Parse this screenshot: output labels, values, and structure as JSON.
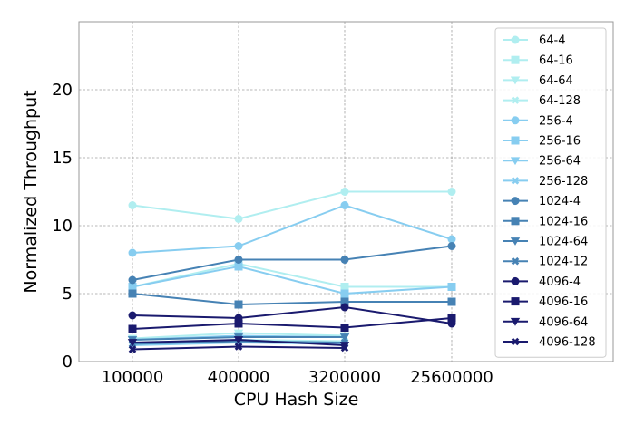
{
  "chart_data": {
    "type": "line",
    "xlabel": "CPU Hash Size",
    "ylabel": "Normalized Throughput",
    "categories": [
      "100000",
      "400000",
      "3200000",
      "25600000"
    ],
    "ylim": [
      0,
      25
    ],
    "yticks": [
      0,
      5,
      10,
      15,
      20
    ],
    "grid": true,
    "legend_position": "right",
    "series": [
      {
        "name": "64-4",
        "color": "#b0eef0",
        "marker": "circle",
        "values": [
          11.5,
          10.5,
          12.5,
          12.5
        ]
      },
      {
        "name": "64-16",
        "color": "#b0eef0",
        "marker": "square",
        "values": [
          5.5,
          7.2,
          5.5,
          5.5
        ]
      },
      {
        "name": "64-64",
        "color": "#b0eef0",
        "marker": "triangle-down",
        "values": [
          1.7,
          2.1,
          1.9,
          null
        ]
      },
      {
        "name": "64-128",
        "color": "#b0eef0",
        "marker": "x",
        "values": [
          1.3,
          1.6,
          1.5,
          null
        ]
      },
      {
        "name": "256-4",
        "color": "#87cdf0",
        "marker": "circle",
        "values": [
          8.0,
          8.5,
          11.5,
          9.0
        ]
      },
      {
        "name": "256-16",
        "color": "#87cdf0",
        "marker": "square",
        "values": [
          5.5,
          7.0,
          5.0,
          5.5
        ]
      },
      {
        "name": "256-64",
        "color": "#87cdf0",
        "marker": "triangle-down",
        "values": [
          1.6,
          1.9,
          1.8,
          null
        ]
      },
      {
        "name": "256-128",
        "color": "#87cdf0",
        "marker": "x",
        "values": [
          1.2,
          1.4,
          1.3,
          null
        ]
      },
      {
        "name": "1024-4",
        "color": "#4682b4",
        "marker": "circle",
        "values": [
          6.0,
          7.5,
          7.5,
          8.5
        ]
      },
      {
        "name": "1024-16",
        "color": "#4682b4",
        "marker": "square",
        "values": [
          5.0,
          4.2,
          4.4,
          4.4
        ]
      },
      {
        "name": "1024-64",
        "color": "#4682b4",
        "marker": "triangle-down",
        "values": [
          1.6,
          1.8,
          1.8,
          null
        ]
      },
      {
        "name": "1024-12",
        "color": "#4682b4",
        "marker": "x",
        "values": [
          1.3,
          1.5,
          1.4,
          null
        ]
      },
      {
        "name": "4096-4",
        "color": "#1a1a6e",
        "marker": "circle",
        "values": [
          3.4,
          3.2,
          4.0,
          2.8
        ]
      },
      {
        "name": "4096-16",
        "color": "#1a1a6e",
        "marker": "square",
        "values": [
          2.4,
          2.8,
          2.5,
          3.2
        ]
      },
      {
        "name": "4096-64",
        "color": "#1a1a6e",
        "marker": "triangle-down",
        "values": [
          1.4,
          1.6,
          1.2,
          null
        ]
      },
      {
        "name": "4096-128",
        "color": "#1a1a6e",
        "marker": "x",
        "values": [
          0.9,
          1.1,
          1.0,
          null
        ]
      }
    ]
  }
}
